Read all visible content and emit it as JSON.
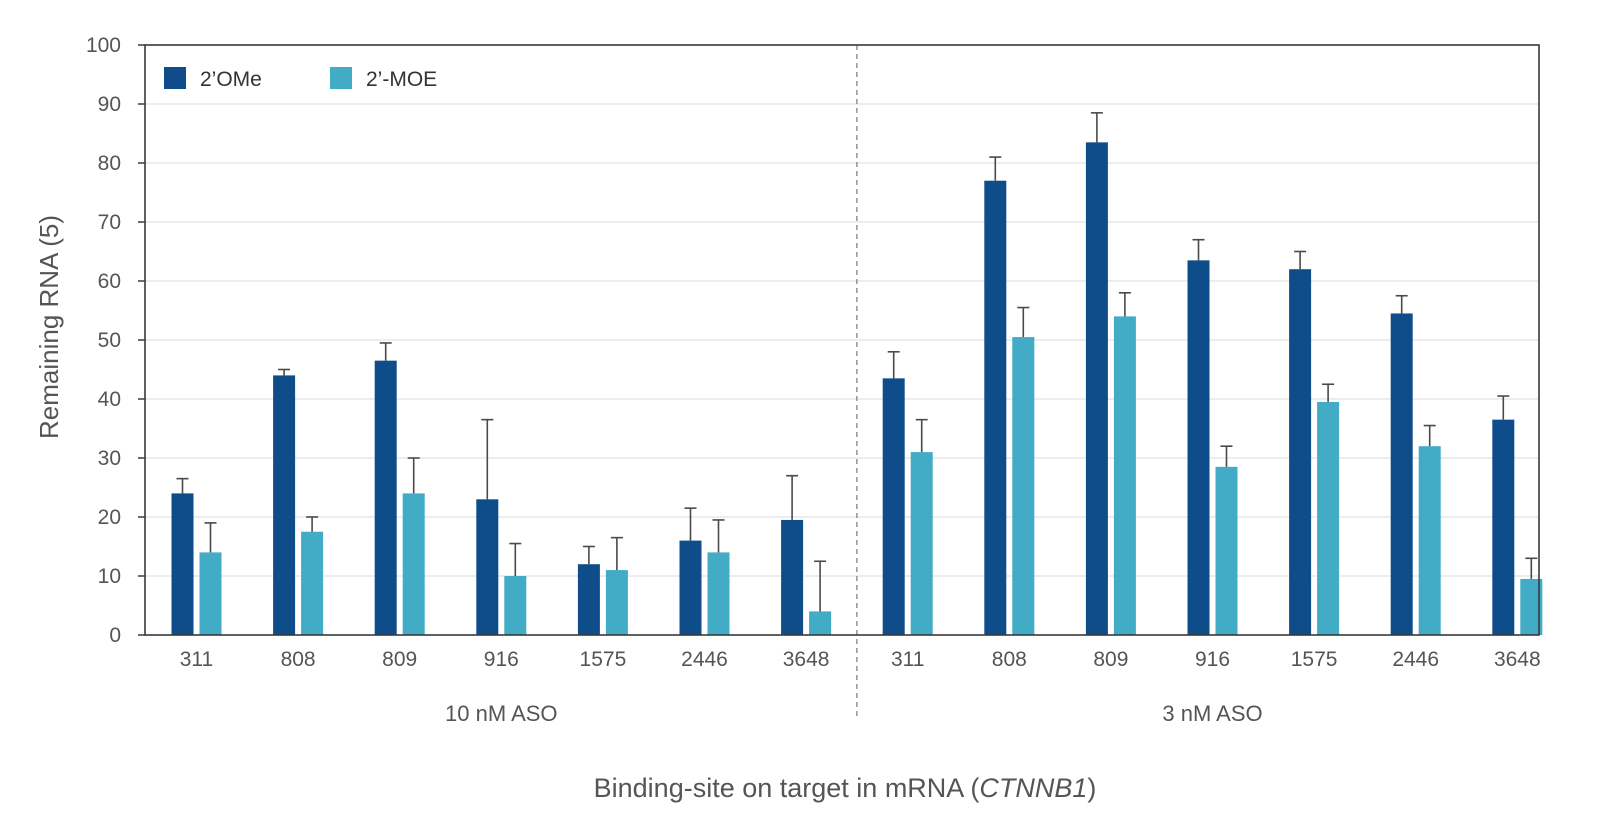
{
  "chart_data": {
    "type": "bar",
    "ylabel": "Remaining RNA (5)",
    "xlabel": "Binding-site on target in mRNA (",
    "xlabel_italic": "CTNNB1",
    "xlabel_suffix": ")",
    "ylim": [
      0,
      100
    ],
    "yticks": [
      0,
      10,
      20,
      30,
      40,
      50,
      60,
      70,
      80,
      90,
      100
    ],
    "grid": "horizontal",
    "legend_position": "top-left",
    "groups": [
      {
        "label": "10 nM ASO",
        "categories": [
          "311",
          "808",
          "809",
          "916",
          "1575",
          "2446",
          "3648"
        ],
        "series": [
          {
            "name": "2’OMe",
            "color": "#0f4c8a",
            "values": [
              24,
              44,
              46.5,
              23,
              12,
              16,
              19.5
            ],
            "errors": [
              2.5,
              1,
              3,
              13.5,
              3,
              5.5,
              7.5
            ]
          },
          {
            "name": "2’-MOE",
            "color": "#42abc6",
            "values": [
              14,
              17.5,
              24,
              10,
              11,
              14,
              4
            ],
            "errors": [
              5,
              2.5,
              6,
              5.5,
              5.5,
              5.5,
              8.5
            ]
          }
        ]
      },
      {
        "label": "3 nM ASO",
        "categories": [
          "311",
          "808",
          "809",
          "916",
          "1575",
          "2446",
          "3648"
        ],
        "series": [
          {
            "name": "2’OMe",
            "color": "#0f4c8a",
            "values": [
              43.5,
              77,
              83.5,
              63.5,
              62,
              54.5,
              36.5
            ],
            "errors": [
              4.5,
              4,
              5,
              3.5,
              3,
              3,
              4
            ]
          },
          {
            "name": "2’-MOE",
            "color": "#42abc6",
            "values": [
              31,
              50.5,
              54,
              28.5,
              39.5,
              32,
              9.5
            ],
            "errors": [
              5.5,
              5,
              4,
              3.5,
              3,
              3.5,
              3.5
            ]
          }
        ]
      }
    ]
  }
}
